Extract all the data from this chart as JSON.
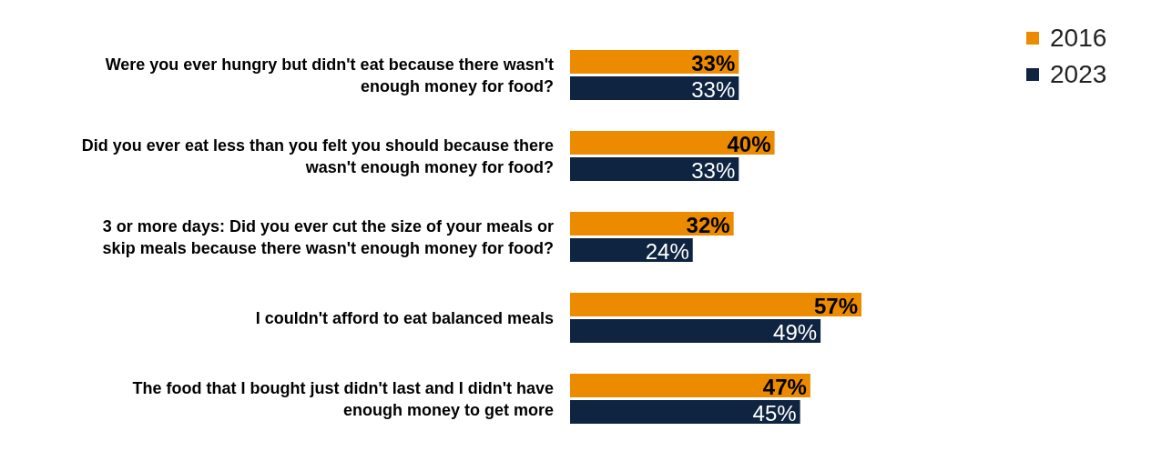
{
  "chart_data": {
    "type": "bar",
    "orientation": "horizontal",
    "legend": "top right",
    "categories": [
      "Were you ever hungry but didn't eat because there wasn't enough money for food?",
      "Did you ever eat less than you felt you should because there wasn't enough money for food?",
      "3 or more days: Did you ever cut the size of your meals or skip meals because there wasn't enough money for food?",
      "I couldn't afford to eat balanced meals",
      "The food that I bought just didn't last and I didn't have enough money to get more"
    ],
    "series": [
      {
        "name": "2016",
        "color": "#ec8b00",
        "values": [
          33,
          40,
          32,
          57,
          47
        ],
        "value_labels": [
          "33%",
          "40%",
          "32%",
          "57%",
          "47%"
        ]
      },
      {
        "name": "2023",
        "color": "#0f2440",
        "values": [
          33,
          33,
          24,
          49,
          45
        ],
        "value_labels": [
          "33%",
          "33%",
          "24%",
          "49%",
          "45%"
        ]
      }
    ]
  }
}
